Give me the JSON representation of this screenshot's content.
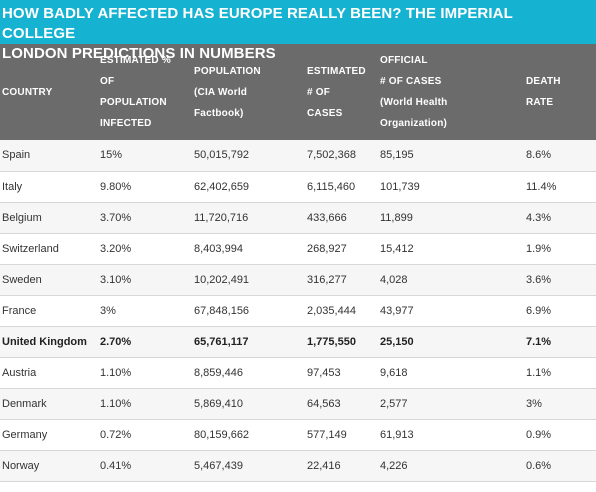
{
  "title_line1": "HOW BADLY AFFECTED HAS EUROPE REALLY BEEN? THE IMPERIAL COLLEGE",
  "title_line2": "LONDON PREDICTIONS IN NUMBERS",
  "headers": {
    "country": [
      "COUNTRY"
    ],
    "estimated_pct": [
      "ESTIMATED %",
      "OF",
      "POPULATION",
      "INFECTED"
    ],
    "population": [
      "POPULATION",
      "(CIA World",
      "Factbook)"
    ],
    "estimated_cases": [
      "ESTIMATED",
      "# OF",
      "CASES"
    ],
    "official_cases": [
      "OFFICIAL",
      "# OF CASES",
      "(World Health",
      "Organization)"
    ],
    "death_rate": [
      "DEATH",
      "RATE"
    ]
  },
  "rows": [
    {
      "country": "Spain",
      "pct": "15%",
      "population": "50,015,792",
      "est_cases": "7,502,368",
      "official": "85,195",
      "death": "8.6%"
    },
    {
      "country": "Italy",
      "pct": "9.80%",
      "population": "62,402,659",
      "est_cases": "6,115,460",
      "official": "101,739",
      "death": "11.4%"
    },
    {
      "country": "Belgium",
      "pct": "3.70%",
      "population": "11,720,716",
      "est_cases": "433,666",
      "official": "11,899",
      "death": "4.3%"
    },
    {
      "country": "Switzerland",
      "pct": "3.20%",
      "population": "8,403,994",
      "est_cases": "268,927",
      "official": "15,412",
      "death": "1.9%"
    },
    {
      "country": "Sweden",
      "pct": "3.10%",
      "population": "10,202,491",
      "est_cases": "316,277",
      "official": "4,028",
      "death": "3.6%"
    },
    {
      "country": "France",
      "pct": "3%",
      "population": "67,848,156",
      "est_cases": "2,035,444",
      "official": "43,977",
      "death": "6.9%"
    },
    {
      "country": "United Kingdom",
      "pct": "2.70%",
      "population": "65,761,117",
      "est_cases": "1,775,550",
      "official": "25,150",
      "death": "7.1%",
      "bold": true
    },
    {
      "country": "Austria",
      "pct": "1.10%",
      "population": "8,859,446",
      "est_cases": "97,453",
      "official": "9,618",
      "death": "1.1%"
    },
    {
      "country": "Denmark",
      "pct": "1.10%",
      "population": "5,869,410",
      "est_cases": "64,563",
      "official": "2,577",
      "death": "3%"
    },
    {
      "country": "Germany",
      "pct": "0.72%",
      "population": "80,159,662",
      "est_cases": "577,149",
      "official": "61,913",
      "death": "0.9%"
    },
    {
      "country": "Norway",
      "pct": "0.41%",
      "population": "5,467,439",
      "est_cases": "22,416",
      "official": "4,226",
      "death": "0.6%"
    }
  ],
  "colors": {
    "title_bg": "#16b2d2",
    "header_bg": "#6b6b6b"
  }
}
